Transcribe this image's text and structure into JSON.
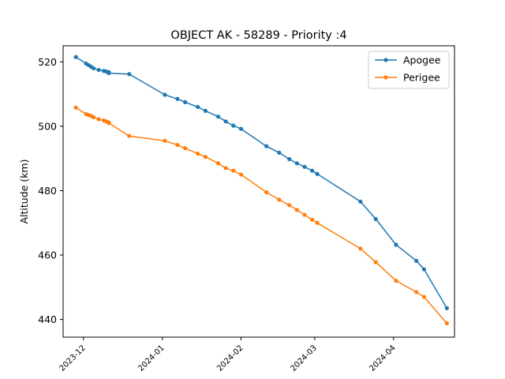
{
  "chart_data": {
    "type": "line",
    "title": "OBJECT AK - 58289 - Priority :4",
    "xlabel": "",
    "ylabel": "Altitude (km)",
    "ylim": [
      434.5,
      525
    ],
    "yticks": [
      440,
      460,
      480,
      500,
      520
    ],
    "xlim": [
      "2023-11-23",
      "2024-04-25"
    ],
    "xticks": [
      "2023-12",
      "2024-01",
      "2024-02",
      "2024-03",
      "2024-04"
    ],
    "legend_position": "top-right",
    "grid": false,
    "colors": {
      "Apogee": "#1f77b4",
      "Perigee": "#ff7f0e"
    },
    "series": [
      {
        "name": "Apogee",
        "x": [
          "2023-11-28",
          "2023-12-02",
          "2023-12-03",
          "2023-12-04",
          "2023-12-05",
          "2023-12-07",
          "2023-12-09",
          "2023-12-10",
          "2023-12-11",
          "2023-12-11",
          "2023-12-19",
          "2024-01-02",
          "2024-01-07",
          "2024-01-10",
          "2024-01-15",
          "2024-01-18",
          "2024-01-23",
          "2024-01-26",
          "2024-01-29",
          "2024-02-01",
          "2024-02-11",
          "2024-02-16",
          "2024-02-20",
          "2024-02-23",
          "2024-02-26",
          "2024-02-29",
          "2024-03-02",
          "2024-03-19",
          "2024-03-25",
          "2024-04-02",
          "2024-04-10",
          "2024-04-13",
          "2024-04-22"
        ],
        "values": [
          521.5,
          519.5,
          519.0,
          518.5,
          518.0,
          517.5,
          517.2,
          517.0,
          516.8,
          516.5,
          516.2,
          509.8,
          508.5,
          507.5,
          506.0,
          504.8,
          503.0,
          501.5,
          500.2,
          499.2,
          493.8,
          491.8,
          489.8,
          488.5,
          487.4,
          486.2,
          485.2,
          476.6,
          471.2,
          463.2,
          458.2,
          455.6,
          443.5
        ]
      },
      {
        "name": "Perigee",
        "x": [
          "2023-11-28",
          "2023-12-02",
          "2023-12-03",
          "2023-12-04",
          "2023-12-05",
          "2023-12-07",
          "2023-12-09",
          "2023-12-10",
          "2023-12-11",
          "2023-12-11",
          "2023-12-19",
          "2024-01-02",
          "2024-01-07",
          "2024-01-10",
          "2024-01-15",
          "2024-01-18",
          "2024-01-23",
          "2024-01-26",
          "2024-01-29",
          "2024-02-01",
          "2024-02-11",
          "2024-02-16",
          "2024-02-20",
          "2024-02-23",
          "2024-02-26",
          "2024-02-29",
          "2024-03-02",
          "2024-03-19",
          "2024-03-25",
          "2024-04-02",
          "2024-04-10",
          "2024-04-13",
          "2024-04-22"
        ],
        "values": [
          505.8,
          503.8,
          503.5,
          503.2,
          502.8,
          502.2,
          501.8,
          501.5,
          501.2,
          501.0,
          497.0,
          495.5,
          494.2,
          493.2,
          491.5,
          490.5,
          488.5,
          487.0,
          486.2,
          485.0,
          479.5,
          477.2,
          475.5,
          474.0,
          472.5,
          471.0,
          470.0,
          462.0,
          457.8,
          452.0,
          448.5,
          447.0,
          438.8
        ]
      }
    ]
  }
}
